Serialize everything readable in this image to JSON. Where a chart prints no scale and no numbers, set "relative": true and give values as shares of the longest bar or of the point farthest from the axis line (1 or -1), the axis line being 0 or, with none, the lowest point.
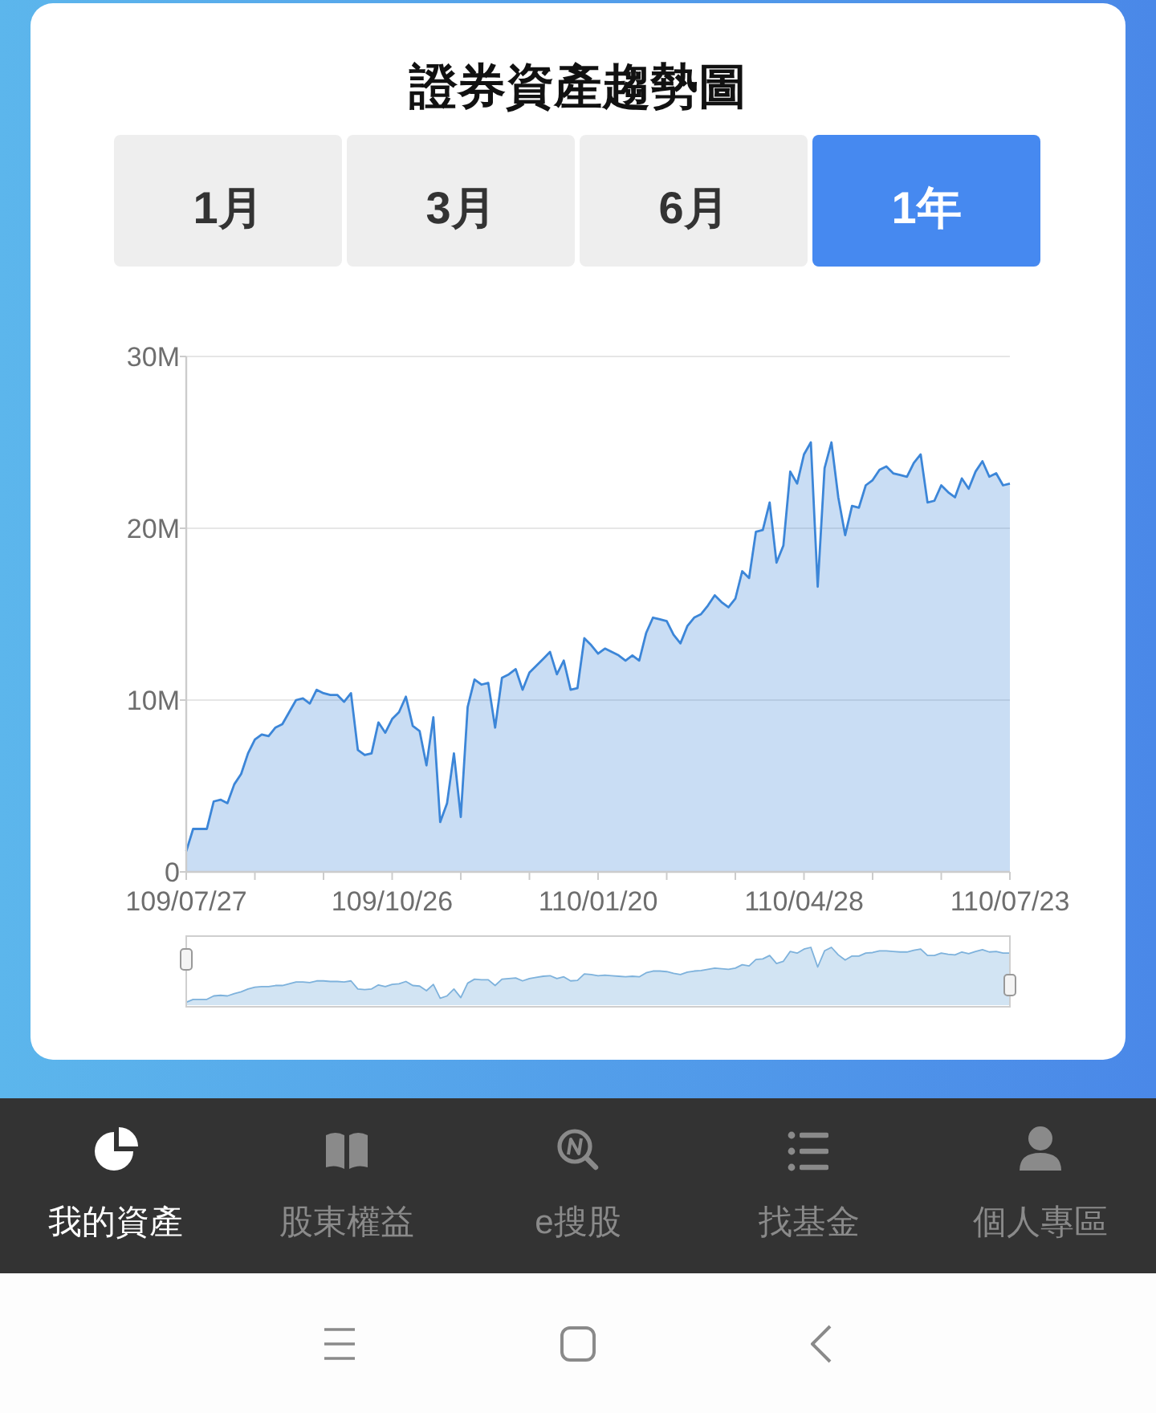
{
  "chart_data": [
    {
      "type": "area",
      "title": "證券資產趨勢圖",
      "categories": [
        "109/07/27",
        null,
        null,
        null,
        null,
        null,
        null,
        null,
        null,
        null,
        null,
        null,
        null,
        null,
        null,
        null,
        null,
        null,
        null,
        null,
        null,
        null,
        null,
        null,
        null,
        null,
        null,
        null,
        null,
        null,
        "109/10/26",
        null,
        null,
        null,
        null,
        null,
        null,
        null,
        null,
        null,
        null,
        null,
        null,
        null,
        null,
        null,
        null,
        null,
        null,
        null,
        null,
        null,
        null,
        null,
        null,
        null,
        null,
        null,
        null,
        null,
        "110/01/20",
        null,
        null,
        null,
        null,
        null,
        null,
        null,
        null,
        null,
        null,
        null,
        null,
        null,
        null,
        null,
        null,
        null,
        null,
        null,
        null,
        null,
        null,
        null,
        null,
        null,
        null,
        null,
        null,
        null,
        "110/04/28",
        null,
        null,
        null,
        null,
        null,
        null,
        null,
        null,
        null,
        null,
        null,
        null,
        null,
        null,
        null,
        null,
        null,
        null,
        null,
        null,
        null,
        null,
        null,
        null,
        null,
        null,
        null,
        null,
        null,
        "110/07/23"
      ],
      "series": [
        {
          "color": "#3c86d8",
          "values": [
            1.2,
            2.5,
            2.5,
            2.5,
            4.1,
            4.2,
            4.0,
            5.1,
            5.7,
            6.9,
            7.7,
            8.0,
            7.9,
            8.4,
            8.6,
            9.3,
            10.0,
            10.1,
            9.8,
            10.6,
            10.4,
            10.3,
            10.3,
            9.9,
            10.4,
            7.1,
            6.8,
            6.9,
            8.7,
            8.1,
            8.9,
            9.3,
            10.2,
            8.5,
            8.2,
            6.2,
            9.0,
            2.9,
            4.0,
            6.9,
            3.2,
            9.6,
            11.2,
            10.9,
            11.0,
            8.4,
            11.3,
            11.5,
            11.8,
            10.6,
            11.6,
            12.0,
            12.4,
            12.8,
            11.5,
            12.3,
            10.6,
            10.7,
            13.6,
            13.2,
            12.7,
            13.0,
            12.8,
            12.6,
            12.3,
            12.6,
            12.3,
            13.9,
            14.8,
            14.7,
            14.6,
            13.8,
            13.3,
            14.3,
            14.8,
            15.0,
            15.5,
            16.1,
            15.7,
            15.4,
            15.9,
            17.5,
            17.1,
            19.8,
            19.9,
            21.5,
            18.0,
            19.0,
            23.3,
            22.6,
            24.3,
            25.0,
            16.6,
            23.5,
            25.0,
            21.8,
            19.6,
            21.3,
            21.2,
            22.5,
            22.8,
            23.4,
            23.6,
            23.2,
            23.1,
            23.0,
            23.8,
            24.3,
            21.5,
            21.6,
            22.5,
            22.1,
            21.8,
            22.9,
            22.3,
            23.3,
            23.9,
            23.0,
            23.2,
            22.5,
            22.6
          ]
        }
      ],
      "ylim": [
        0,
        30
      ],
      "yticks": [
        0,
        {
          "value": 10,
          "label": "10M"
        },
        {
          "value": 20,
          "label": "20M"
        },
        {
          "value": 30,
          "label": "30M"
        }
      ],
      "grid": "y",
      "annotations": [
        "1月",
        "3月",
        "6月",
        "1年",
        "我的資產",
        "股東權益",
        "e搜股",
        "找基金",
        "個人專區"
      ]
    },
    {
      "type": "area",
      "relative": true,
      "categories": [
        null,
        null,
        null,
        null,
        null,
        null,
        null,
        null,
        null,
        null,
        null,
        null,
        null,
        null,
        null,
        null,
        null,
        null,
        null,
        null,
        null,
        null,
        null,
        null,
        null,
        null,
        null,
        null,
        null,
        null,
        null,
        null,
        null,
        null,
        null,
        null,
        null,
        null,
        null,
        null,
        null,
        null,
        null,
        null,
        null,
        null,
        null,
        null,
        null,
        null,
        null,
        null,
        null,
        null,
        null,
        null,
        null,
        null,
        null,
        null,
        null,
        null,
        null,
        null,
        null,
        null,
        null,
        null,
        null,
        null,
        null,
        null,
        null,
        null,
        null,
        null,
        null,
        null,
        null,
        null,
        null,
        null,
        null,
        null,
        null,
        null,
        null,
        null,
        null,
        null,
        null,
        null,
        null,
        null,
        null,
        null,
        null,
        null,
        null,
        null,
        null,
        null,
        null,
        null,
        null,
        null,
        null,
        null,
        null,
        null,
        null,
        null,
        null,
        null,
        null,
        null,
        null,
        null,
        null,
        null,
        null
      ],
      "series": [
        {
          "color": "#7eb2dc",
          "values": [
            0.05,
            0.1,
            0.1,
            0.1,
            0.16,
            0.17,
            0.16,
            0.2,
            0.23,
            0.28,
            0.31,
            0.32,
            0.32,
            0.34,
            0.34,
            0.37,
            0.4,
            0.4,
            0.39,
            0.42,
            0.42,
            0.41,
            0.41,
            0.4,
            0.42,
            0.28,
            0.27,
            0.28,
            0.35,
            0.32,
            0.36,
            0.37,
            0.41,
            0.34,
            0.33,
            0.25,
            0.36,
            0.12,
            0.16,
            0.28,
            0.13,
            0.38,
            0.45,
            0.44,
            0.44,
            0.34,
            0.45,
            0.46,
            0.47,
            0.42,
            0.46,
            0.48,
            0.5,
            0.51,
            0.46,
            0.49,
            0.42,
            0.43,
            0.54,
            0.53,
            0.51,
            0.52,
            0.51,
            0.5,
            0.49,
            0.5,
            0.49,
            0.56,
            0.59,
            0.59,
            0.58,
            0.55,
            0.53,
            0.57,
            0.59,
            0.6,
            0.62,
            0.64,
            0.63,
            0.62,
            0.64,
            0.7,
            0.68,
            0.79,
            0.8,
            0.86,
            0.72,
            0.76,
            0.93,
            0.9,
            0.97,
            1,
            0.66,
            0.94,
            1,
            0.87,
            0.78,
            0.85,
            0.85,
            0.9,
            0.91,
            0.94,
            0.94,
            0.93,
            0.92,
            0.92,
            0.95,
            0.97,
            0.86,
            0.86,
            0.9,
            0.88,
            0.87,
            0.92,
            0.89,
            0.93,
            0.96,
            0.92,
            0.93,
            0.9,
            0.9
          ]
        }
      ]
    }
  ]
}
